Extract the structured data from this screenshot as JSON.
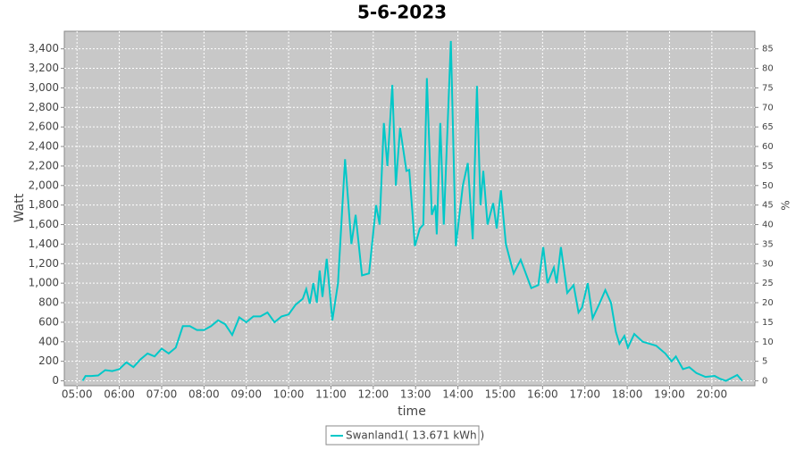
{
  "chart_data": {
    "type": "line",
    "title": "5-6-2023",
    "x_label": "time",
    "y_label": "Watt",
    "y2_label": "%",
    "x": [
      "05:08",
      "05:12",
      "05:20",
      "05:30",
      "05:40",
      "05:50",
      "06:00",
      "06:10",
      "06:20",
      "06:30",
      "06:40",
      "06:50",
      "07:00",
      "07:10",
      "07:20",
      "07:30",
      "07:40",
      "07:50",
      "08:00",
      "08:10",
      "08:20",
      "08:30",
      "08:40",
      "08:50",
      "09:00",
      "09:10",
      "09:20",
      "09:30",
      "09:40",
      "09:50",
      "10:00",
      "10:10",
      "10:20",
      "10:25",
      "10:30",
      "10:35",
      "10:40",
      "10:44",
      "10:48",
      "10:54",
      "11:02",
      "11:10",
      "11:20",
      "11:29",
      "11:35",
      "11:44",
      "11:54",
      "12:04",
      "12:09",
      "12:15",
      "12:20",
      "12:27",
      "12:32",
      "12:38",
      "12:47",
      "12:51",
      "12:59",
      "13:06",
      "13:11",
      "13:16",
      "13:23",
      "13:28",
      "13:30",
      "13:35",
      "13:40",
      "13:50",
      "13:57",
      "14:07",
      "14:14",
      "14:21",
      "14:27",
      "14:32",
      "14:36",
      "14:42",
      "14:50",
      "14:55",
      "15:01",
      "15:08",
      "15:19",
      "15:29",
      "15:44",
      "15:54",
      "16:01",
      "16:07",
      "16:16",
      "16:20",
      "16:26",
      "16:35",
      "16:44",
      "16:51",
      "16:56",
      "17:04",
      "17:11",
      "17:20",
      "17:29",
      "17:37",
      "17:44",
      "17:49",
      "17:56",
      "18:01",
      "18:10",
      "18:22",
      "18:41",
      "18:54",
      "19:03",
      "19:09",
      "19:19",
      "19:28",
      "19:38",
      "19:51",
      "20:04",
      "20:12",
      "20:20",
      "20:36",
      "20:43"
    ],
    "series": [
      {
        "name": "Swanland1( 13.671 kWh )",
        "color": "#00c8c8",
        "values": [
          0,
          50,
          50,
          55,
          110,
          100,
          120,
          190,
          140,
          220,
          280,
          250,
          330,
          280,
          340,
          560,
          560,
          520,
          520,
          560,
          620,
          580,
          470,
          650,
          600,
          660,
          660,
          700,
          600,
          660,
          680,
          780,
          840,
          940,
          790,
          1000,
          800,
          1130,
          860,
          1250,
          620,
          1000,
          2270,
          1400,
          1700,
          1080,
          1100,
          1800,
          1600,
          2640,
          2200,
          3030,
          2000,
          2590,
          2150,
          2160,
          1380,
          1560,
          1600,
          3100,
          1700,
          1800,
          1500,
          2640,
          1600,
          3480,
          1380,
          2000,
          2230,
          1450,
          3020,
          1800,
          2150,
          1600,
          1820,
          1560,
          1950,
          1400,
          1100,
          1240,
          950,
          980,
          1370,
          1000,
          1160,
          1000,
          1370,
          900,
          980,
          700,
          750,
          1000,
          640,
          780,
          930,
          800,
          500,
          380,
          460,
          340,
          480,
          400,
          360,
          280,
          200,
          250,
          120,
          140,
          80,
          40,
          50,
          20,
          0,
          60,
          0
        ]
      }
    ],
    "xlim": [
      "04:42",
      "21:01"
    ],
    "xticks": [
      "05:00",
      "06:00",
      "07:00",
      "08:00",
      "09:00",
      "10:00",
      "11:00",
      "12:00",
      "13:00",
      "14:00",
      "15:00",
      "16:00",
      "17:00",
      "18:00",
      "19:00",
      "20:00"
    ],
    "ylim": [
      -50,
      3580
    ],
    "yticks": [
      0,
      200,
      400,
      600,
      800,
      {
        "value": 1000,
        "label": "1,000"
      },
      {
        "value": 1200,
        "label": "1,200"
      },
      {
        "value": 1400,
        "label": "1,400"
      },
      {
        "value": 1600,
        "label": "1,600"
      },
      {
        "value": 1800,
        "label": "1,800"
      },
      {
        "value": 2000,
        "label": "2,000"
      },
      {
        "value": 2200,
        "label": "2,200"
      },
      {
        "value": 2400,
        "label": "2,400"
      },
      {
        "value": 2600,
        "label": "2,600"
      },
      {
        "value": 2800,
        "label": "2,800"
      },
      {
        "value": 3000,
        "label": "3,000"
      },
      {
        "value": 3200,
        "label": "3,200"
      },
      {
        "value": 3400,
        "label": "3,400"
      }
    ],
    "y2lim": [
      -1.25,
      89.5
    ],
    "y2ticks": [
      0,
      5,
      10,
      15,
      20,
      25,
      30,
      35,
      40,
      45,
      50,
      55,
      60,
      65,
      70,
      75,
      80,
      85
    ],
    "grid": true
  }
}
